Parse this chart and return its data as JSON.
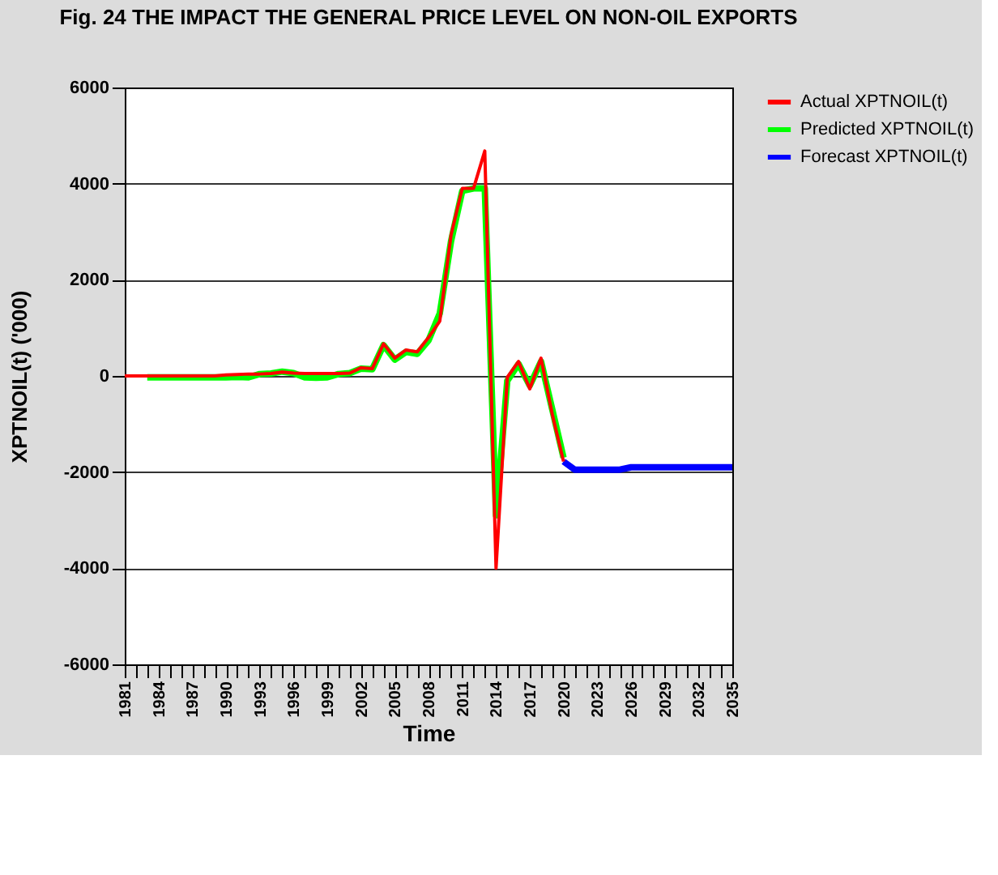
{
  "chart_data": {
    "type": "line",
    "title": "Fig. 24  THE IMPACT THE GENERAL PRICE LEVEL ON NON-OIL EXPORTS",
    "xlabel": "Time",
    "ylabel": "XPTNOIL(t) ('000)",
    "series": [
      {
        "name": "Actual XPTNOIL(t)",
        "color": "#ff0000",
        "x": [
          1981,
          1982,
          1983,
          1984,
          1985,
          1986,
          1987,
          1988,
          1989,
          1990,
          1991,
          1992,
          1993,
          1994,
          1995,
          1996,
          1997,
          1998,
          1999,
          2000,
          2001,
          2002,
          2003,
          2004,
          2005,
          2006,
          2007,
          2008,
          2009,
          2010,
          2011,
          2012,
          2013,
          2014,
          2015,
          2016,
          2017,
          2018,
          2019,
          2020
        ],
        "values": [
          0,
          0,
          0,
          0,
          0,
          0,
          0,
          0,
          0,
          20,
          30,
          40,
          40,
          50,
          80,
          60,
          50,
          50,
          50,
          50,
          60,
          170,
          150,
          670,
          370,
          540,
          500,
          800,
          1140,
          2930,
          3900,
          3900,
          4680,
          -4000,
          -30,
          300,
          -270,
          370,
          -800,
          -1780
        ]
      },
      {
        "name": "Predicted XPTNOIL(t)",
        "color": "#00ff00",
        "x": [
          1983,
          1984,
          1985,
          1986,
          1987,
          1988,
          1989,
          1990,
          1991,
          1992,
          1993,
          1994,
          1995,
          1996,
          1997,
          1998,
          1999,
          2000,
          2001,
          2002,
          2003,
          2004,
          2005,
          2006,
          2007,
          2008,
          2009,
          2010,
          2011,
          2012,
          2013,
          2014,
          2015,
          2016,
          2017,
          2018,
          2019,
          2020
        ],
        "values": [
          -30,
          -30,
          -30,
          -30,
          -30,
          -30,
          -30,
          -30,
          -20,
          -30,
          40,
          50,
          90,
          60,
          -30,
          -40,
          -30,
          40,
          60,
          150,
          140,
          640,
          340,
          500,
          460,
          740,
          1300,
          2800,
          3850,
          3900,
          3900,
          -2900,
          -100,
          250,
          -200,
          300,
          -700,
          -1700
        ]
      },
      {
        "name": "Forecast XPTNOIL(t)",
        "color": "#0000ff",
        "x": [
          2020,
          2021,
          2022,
          2023,
          2024,
          2025,
          2026,
          2027,
          2028,
          2029,
          2030,
          2031,
          2032,
          2033,
          2034,
          2035
        ],
        "values": [
          -1780,
          -1950,
          -1950,
          -1950,
          -1950,
          -1950,
          -1900,
          -1900,
          -1900,
          -1900,
          -1900,
          -1900,
          -1900,
          -1900,
          -1900,
          -1900
        ]
      }
    ],
    "xlim": [
      1981,
      2035
    ],
    "xticks": [
      1981,
      {
        "value": 1982,
        "label": null
      },
      {
        "value": 1983,
        "label": null
      },
      1984,
      {
        "value": 1985,
        "label": null
      },
      {
        "value": 1986,
        "label": null
      },
      1987,
      {
        "value": 1988,
        "label": null
      },
      {
        "value": 1989,
        "label": null
      },
      1990,
      {
        "value": 1991,
        "label": null
      },
      {
        "value": 1992,
        "label": null
      },
      1993,
      {
        "value": 1994,
        "label": null
      },
      {
        "value": 1995,
        "label": null
      },
      1996,
      {
        "value": 1997,
        "label": null
      },
      {
        "value": 1998,
        "label": null
      },
      1999,
      {
        "value": 2000,
        "label": null
      },
      {
        "value": 2001,
        "label": null
      },
      2002,
      {
        "value": 2003,
        "label": null
      },
      {
        "value": 2004,
        "label": null
      },
      2005,
      {
        "value": 2006,
        "label": null
      },
      {
        "value": 2007,
        "label": null
      },
      2008,
      {
        "value": 2009,
        "label": null
      },
      {
        "value": 2010,
        "label": null
      },
      2011,
      {
        "value": 2012,
        "label": null
      },
      {
        "value": 2013,
        "label": null
      },
      2014,
      {
        "value": 2015,
        "label": null
      },
      {
        "value": 2016,
        "label": null
      },
      2017,
      {
        "value": 2018,
        "label": null
      },
      {
        "value": 2019,
        "label": null
      },
      2020,
      {
        "value": 2021,
        "label": null
      },
      {
        "value": 2022,
        "label": null
      },
      2023,
      {
        "value": 2024,
        "label": null
      },
      {
        "value": 2025,
        "label": null
      },
      2026,
      {
        "value": 2027,
        "label": null
      },
      {
        "value": 2028,
        "label": null
      },
      2029,
      {
        "value": 2030,
        "label": null
      },
      {
        "value": 2031,
        "label": null
      },
      2032,
      {
        "value": 2033,
        "label": null
      },
      {
        "value": 2034,
        "label": null
      },
      2035
    ],
    "ylim": [
      -6000,
      6000
    ],
    "yticks": [
      -6000,
      -4000,
      -2000,
      0,
      2000,
      4000,
      6000
    ],
    "grid": "y",
    "legend": "right",
    "marker": "none",
    "line_style": "solid"
  }
}
